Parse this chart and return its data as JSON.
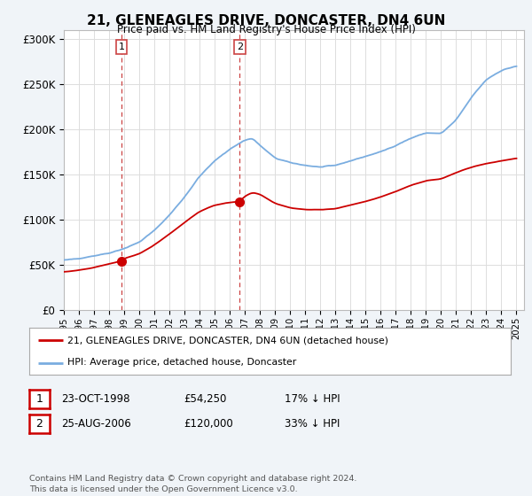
{
  "title": "21, GLENEAGLES DRIVE, DONCASTER, DN4 6UN",
  "subtitle": "Price paid vs. HM Land Registry's House Price Index (HPI)",
  "ylabel_ticks": [
    "£0",
    "£50K",
    "£100K",
    "£150K",
    "£200K",
    "£250K",
    "£300K"
  ],
  "ytick_values": [
    0,
    50000,
    100000,
    150000,
    200000,
    250000,
    300000
  ],
  "ylim": [
    0,
    310000
  ],
  "xlim_start": 1995.0,
  "xlim_end": 2025.5,
  "sale1_date": 1998.81,
  "sale1_price": 54250,
  "sale1_label": "1",
  "sale2_date": 2006.65,
  "sale2_price": 120000,
  "sale2_label": "2",
  "hpi_color": "#7aade0",
  "price_color": "#cc0000",
  "dashed_color": "#cc0000",
  "legend_line1": "21, GLENEAGLES DRIVE, DONCASTER, DN4 6UN (detached house)",
  "legend_line2": "HPI: Average price, detached house, Doncaster",
  "table_row1": [
    "1",
    "23-OCT-1998",
    "£54,250",
    "17% ↓ HPI"
  ],
  "table_row2": [
    "2",
    "25-AUG-2006",
    "£120,000",
    "33% ↓ HPI"
  ],
  "footnote": "Contains HM Land Registry data © Crown copyright and database right 2024.\nThis data is licensed under the Open Government Licence v3.0.",
  "background_color": "#f0f4f8",
  "plot_bg_color": "#ffffff",
  "grid_color": "#dddddd",
  "hpi_knots": [
    1995,
    1996,
    1997,
    1998,
    1999,
    2000,
    2001,
    2002,
    2003,
    2004,
    2005,
    2006,
    2007,
    2007.5,
    2008,
    2009,
    2010,
    2011,
    2012,
    2013,
    2014,
    2015,
    2016,
    2017,
    2018,
    2019,
    2020,
    2021,
    2022,
    2023,
    2024,
    2025
  ],
  "hpi_prices": [
    55000,
    57000,
    60000,
    63000,
    68000,
    75000,
    88000,
    105000,
    125000,
    148000,
    165000,
    178000,
    188000,
    190000,
    182000,
    168000,
    163000,
    160000,
    158000,
    160000,
    165000,
    170000,
    175000,
    182000,
    190000,
    196000,
    195000,
    210000,
    235000,
    255000,
    265000,
    270000
  ],
  "price_knots": [
    1995,
    1996,
    1997,
    1998,
    1998.81,
    1999,
    2000,
    2001,
    2002,
    2003,
    2004,
    2005,
    2006,
    2006.65,
    2007,
    2007.5,
    2008,
    2009,
    2010,
    2011,
    2012,
    2013,
    2014,
    2015,
    2016,
    2017,
    2018,
    2019,
    2020,
    2021,
    2022,
    2023,
    2024,
    2025
  ],
  "price_prices": [
    42000,
    44000,
    47000,
    51000,
    54250,
    57000,
    62000,
    72000,
    84000,
    97000,
    109000,
    116000,
    119000,
    120000,
    126000,
    130000,
    128000,
    118000,
    113000,
    111000,
    111000,
    112000,
    116000,
    120000,
    125000,
    131000,
    138000,
    143000,
    145000,
    152000,
    158000,
    162000,
    165000,
    168000
  ]
}
